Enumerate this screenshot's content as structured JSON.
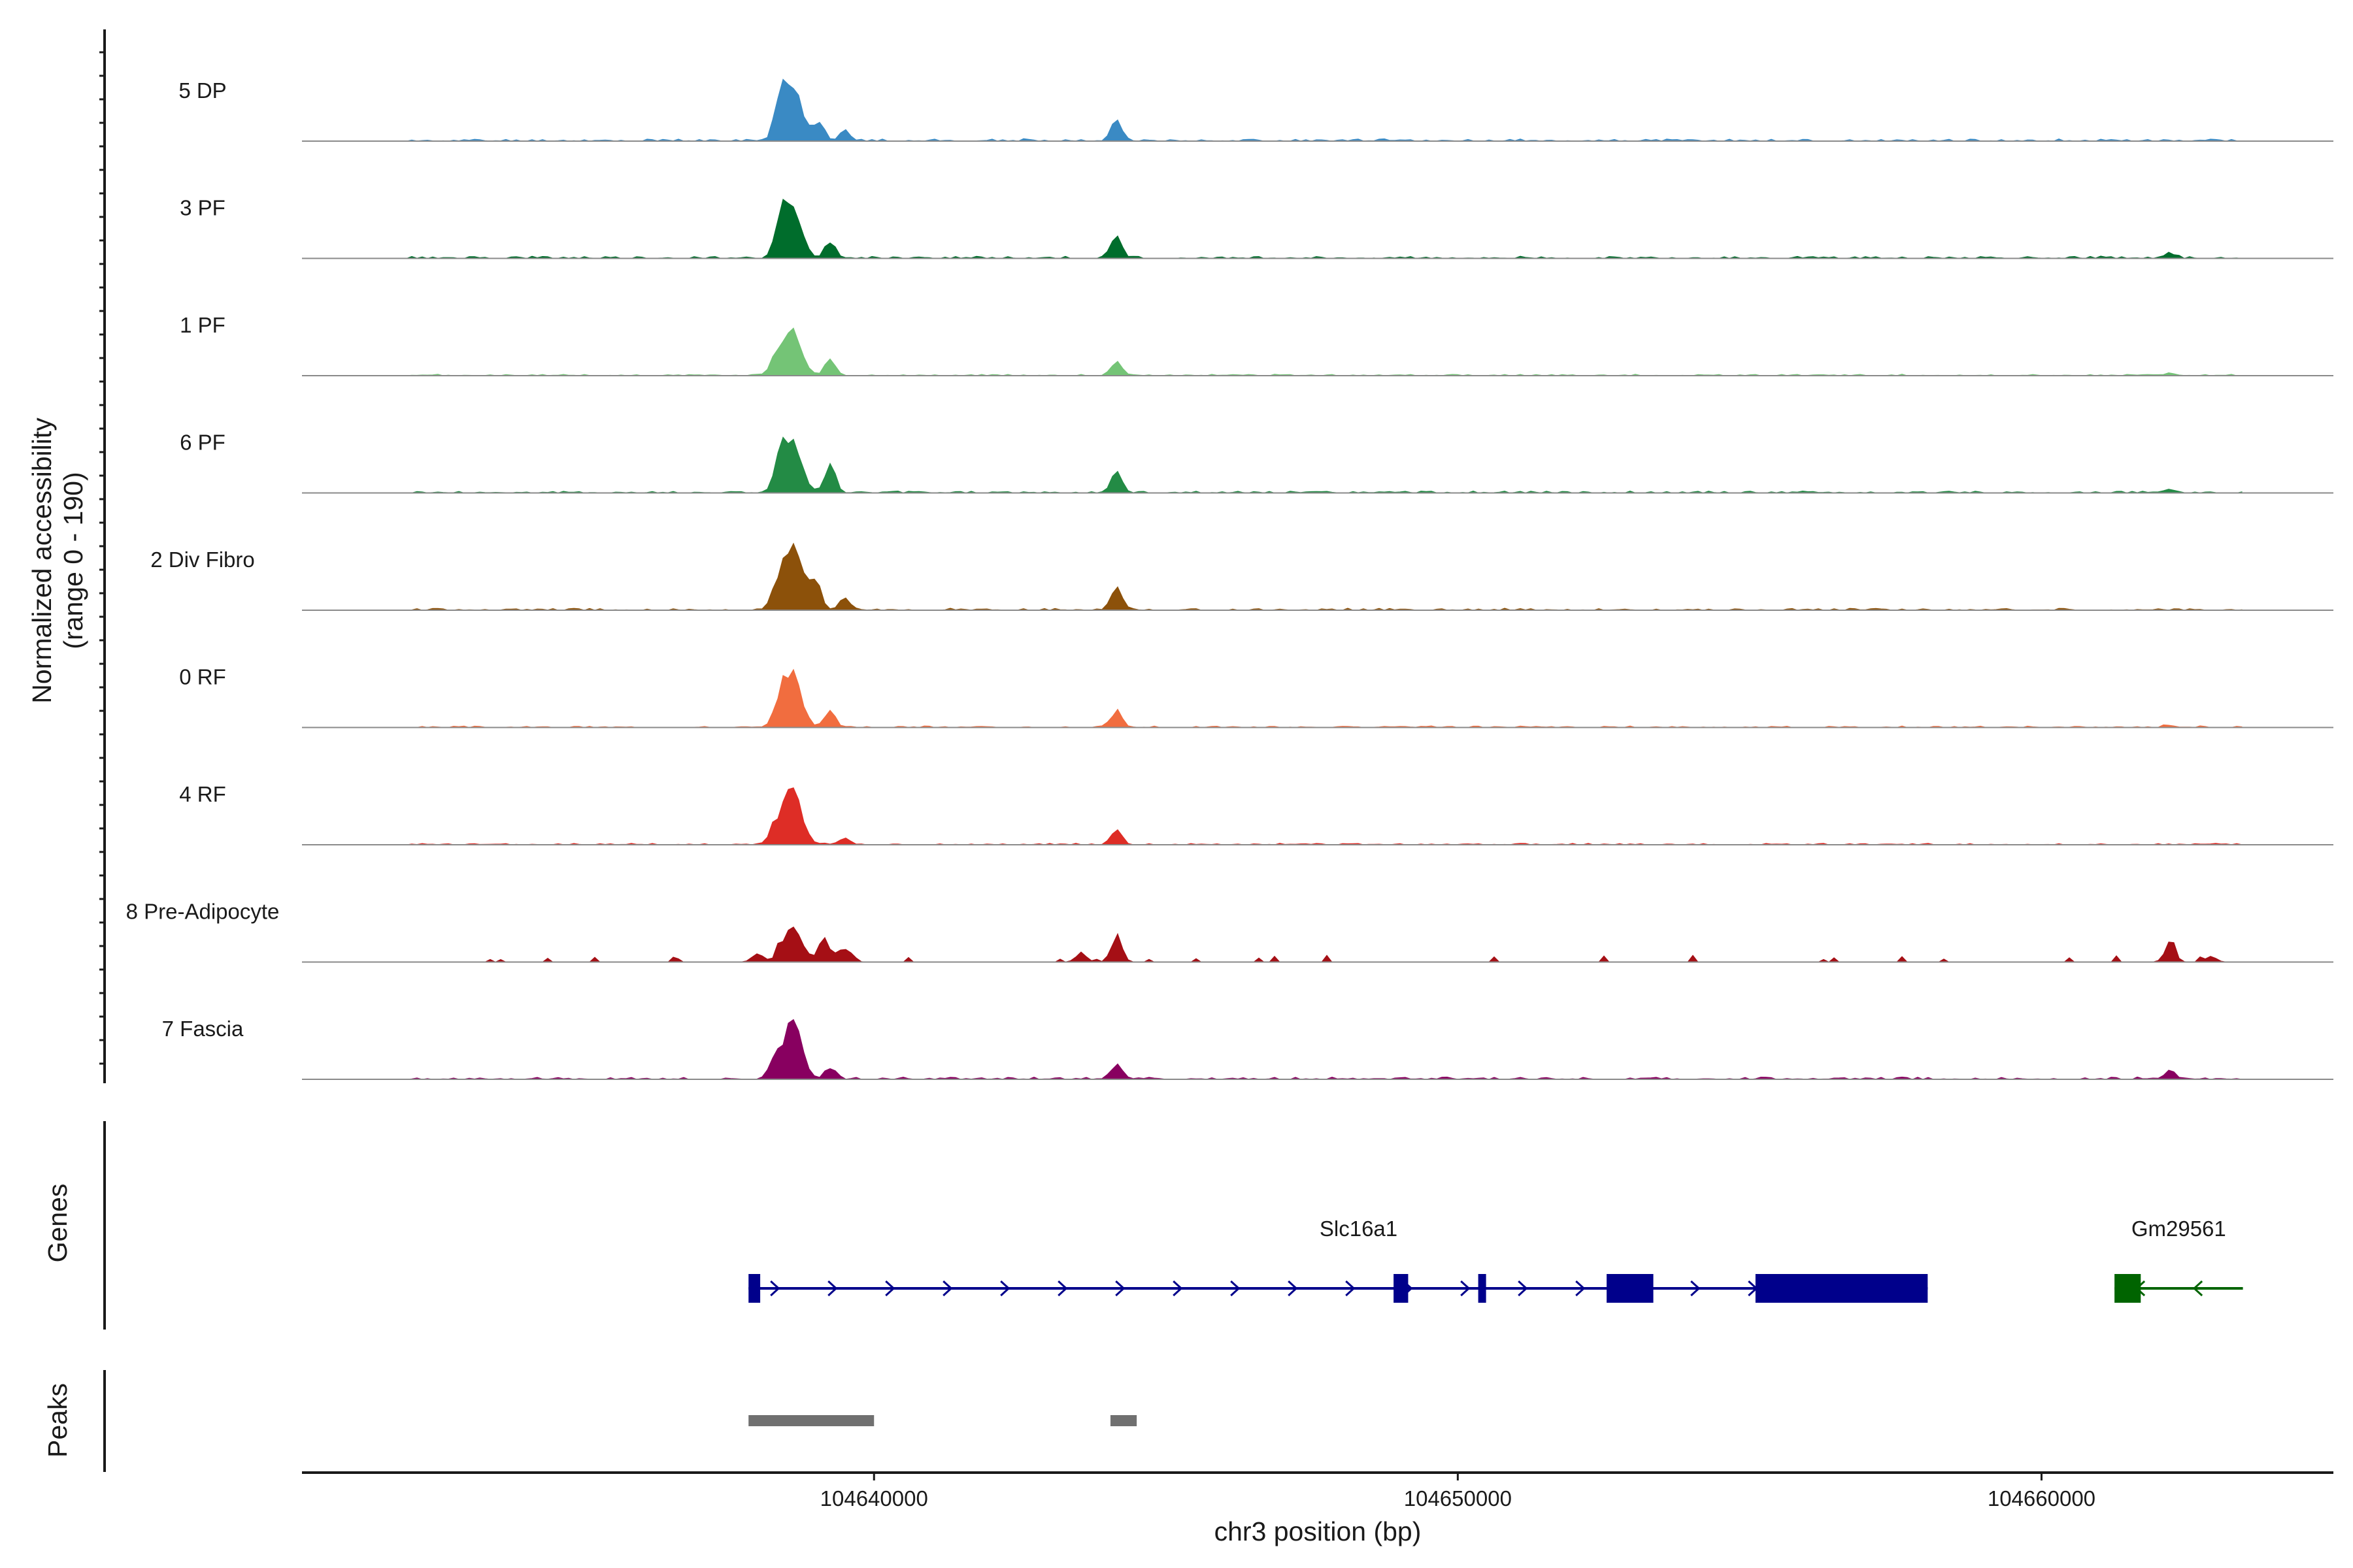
{
  "chart_data": {
    "type": "area",
    "title": "",
    "ylabel": "Normalized accessibility",
    "ylabel_range": "(range 0 - 190)",
    "xlabel": "chr3 position (bp)",
    "xlim": [
      104630200,
      104665000
    ],
    "xticks": [
      104640000,
      104650000,
      104660000
    ],
    "xtick_labels": [
      "104640000",
      "104650000",
      "104660000"
    ],
    "tracks": [
      {
        "name": "5 DP",
        "color": "#3a8ac4",
        "peaks": [
          [
            104638380,
            95
          ],
          [
            104638600,
            142
          ],
          [
            104639050,
            55
          ],
          [
            104639500,
            25
          ],
          [
            104644150,
            60
          ]
        ],
        "noise": 6,
        "seed": 11
      },
      {
        "name": "3 PF",
        "color": "#006d2c",
        "peaks": [
          [
            104638380,
            75
          ],
          [
            104638600,
            150
          ],
          [
            104639250,
            45
          ],
          [
            104644150,
            60
          ],
          [
            104662200,
            15
          ]
        ],
        "noise": 6,
        "seed": 23
      },
      {
        "name": "1 PF",
        "color": "#74c476",
        "peaks": [
          [
            104638300,
            40
          ],
          [
            104638600,
            125
          ],
          [
            104639250,
            40
          ],
          [
            104644150,
            40
          ],
          [
            104662200,
            6
          ]
        ],
        "noise": 4,
        "seed": 37
      },
      {
        "name": "6 PF",
        "color": "#238b45",
        "peaks": [
          [
            104638380,
            70
          ],
          [
            104638600,
            140
          ],
          [
            104639250,
            75
          ],
          [
            104644150,
            60
          ],
          [
            104662200,
            10
          ]
        ],
        "noise": 5,
        "seed": 41
      },
      {
        "name": "2 Div Fibro",
        "color": "#8c510a",
        "peaks": [
          [
            104638300,
            40
          ],
          [
            104638600,
            190
          ],
          [
            104639000,
            80
          ],
          [
            104639500,
            30
          ],
          [
            104644150,
            60
          ]
        ],
        "noise": 5,
        "seed": 53
      },
      {
        "name": "0 RF",
        "color": "#f16d3f",
        "peaks": [
          [
            104638380,
            50
          ],
          [
            104638600,
            145
          ],
          [
            104639250,
            45
          ],
          [
            104644150,
            45
          ],
          [
            104662200,
            6
          ]
        ],
        "noise": 4,
        "seed": 67
      },
      {
        "name": "4 RF",
        "color": "#de2d26",
        "peaks": [
          [
            104638300,
            45
          ],
          [
            104638600,
            150
          ],
          [
            104639500,
            20
          ],
          [
            104644150,
            40
          ]
        ],
        "noise": 4,
        "seed": 71
      },
      {
        "name": "8 Pre-Adipocyte",
        "color": "#a50f15",
        "peaks": [
          [
            104638000,
            25
          ],
          [
            104638600,
            110
          ],
          [
            104639150,
            70
          ],
          [
            104639550,
            35
          ],
          [
            104643550,
            25
          ],
          [
            104644150,
            70
          ],
          [
            104662200,
            50
          ],
          [
            104662900,
            15
          ]
        ],
        "noise": 12,
        "seed": 89,
        "sparse": true
      },
      {
        "name": "7 Fascia",
        "color": "#880060",
        "peaks": [
          [
            104638300,
            50
          ],
          [
            104638600,
            150
          ],
          [
            104639250,
            30
          ],
          [
            104644150,
            35
          ],
          [
            104662200,
            20
          ]
        ],
        "noise": 6,
        "seed": 97
      }
    ],
    "genes": [
      {
        "name": "Slc16a1",
        "color": "#00008b",
        "strand": "+",
        "start": 104637850,
        "end": 104658050,
        "exons": [
          [
            104637850,
            104638050
          ],
          [
            104648900,
            104649150
          ],
          [
            104650350,
            104650450
          ],
          [
            104652550,
            104653350
          ],
          [
            104655100,
            104658050
          ]
        ]
      },
      {
        "name": "Gm29561",
        "color": "#006400",
        "strand": "-",
        "start": 104661250,
        "end": 104663450,
        "exons": [
          [
            104661250,
            104661700
          ]
        ]
      }
    ],
    "peak_regions": [
      [
        104637850,
        104640000
      ],
      [
        104644050,
        104644500
      ]
    ],
    "panel_labels": {
      "genes": "Genes",
      "peaks": "Peaks"
    },
    "peak_color": "#707070"
  }
}
